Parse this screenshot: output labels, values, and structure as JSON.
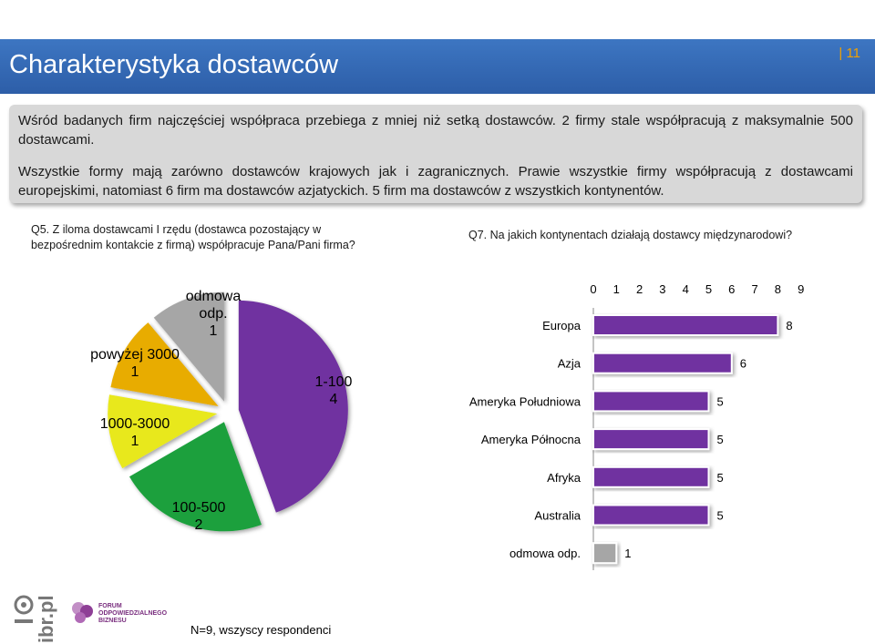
{
  "header": {
    "title": "Charakterystyka dostawców",
    "page_number": "| 11"
  },
  "summary": {
    "paragraph1": "Wśród badanych firm najczęściej współpraca przebiega z mniej niż setką dostawców. 2 firmy stale współpracują z maksymalnie 500 dostawcami.",
    "paragraph2": "Wszystkie formy mają zarówno dostawców krajowych jak i zagranicznych. Prawie wszystkie firmy współpracują z dostawcami europejskimi, natomiast 6 firm ma dostawców azjatyckich. 5 firm ma dostawców z wszystkich kontynentów."
  },
  "questions": {
    "q5": "Q5. Z iloma dostawcami I rzędu (dostawca pozostający w bezpośrednim kontakcie z firmą) współpracuje Pana/Pani firma?",
    "q7": "Q7. Na jakich kontynentach działają dostawcy międzynarodowi?"
  },
  "footer": {
    "note": "N=9, wszyscy respondenci",
    "logo_ibr": "ibr.pl",
    "logo_forum": [
      "FORUM",
      "ODPOWIEDZIALNEGO",
      "BIZNESU"
    ]
  },
  "colors": {
    "title_bar": "#2f64ae",
    "accent": "#f0a000",
    "purple": "#7030a0",
    "green": "#1aa03c",
    "yellow": "#e8e81a",
    "orange": "#e8ac00",
    "gray": "#a6a6a6"
  },
  "chart_data": [
    {
      "type": "pie",
      "title": "",
      "slices": [
        {
          "label": "1-100",
          "value": 4,
          "color": "#7030a0"
        },
        {
          "label": "100-500",
          "value": 2,
          "color": "#1aa03c"
        },
        {
          "label": "1000-3000",
          "value": 1,
          "color": "#e8e81a"
        },
        {
          "label": "powyżej 3000",
          "value": 1,
          "color": "#e8ac00"
        },
        {
          "label": "odmowa odp.",
          "value": 1,
          "color": "#a6a6a6"
        }
      ]
    },
    {
      "type": "bar",
      "orientation": "horizontal",
      "title": "",
      "categories": [
        "Europa",
        "Azja",
        "Ameryka Południowa",
        "Ameryka Północna",
        "Afryka",
        "Australia",
        "odmowa odp."
      ],
      "values": [
        8,
        6,
        5,
        5,
        5,
        5,
        1
      ],
      "colors": [
        "#7030a0",
        "#7030a0",
        "#7030a0",
        "#7030a0",
        "#7030a0",
        "#7030a0",
        "#a6a6a6"
      ],
      "xlim": [
        0,
        9
      ],
      "xticks": [
        0,
        1,
        2,
        3,
        4,
        5,
        6,
        7,
        8,
        9
      ],
      "xaxis_position": "top",
      "grid": false,
      "data_labels": true
    }
  ]
}
